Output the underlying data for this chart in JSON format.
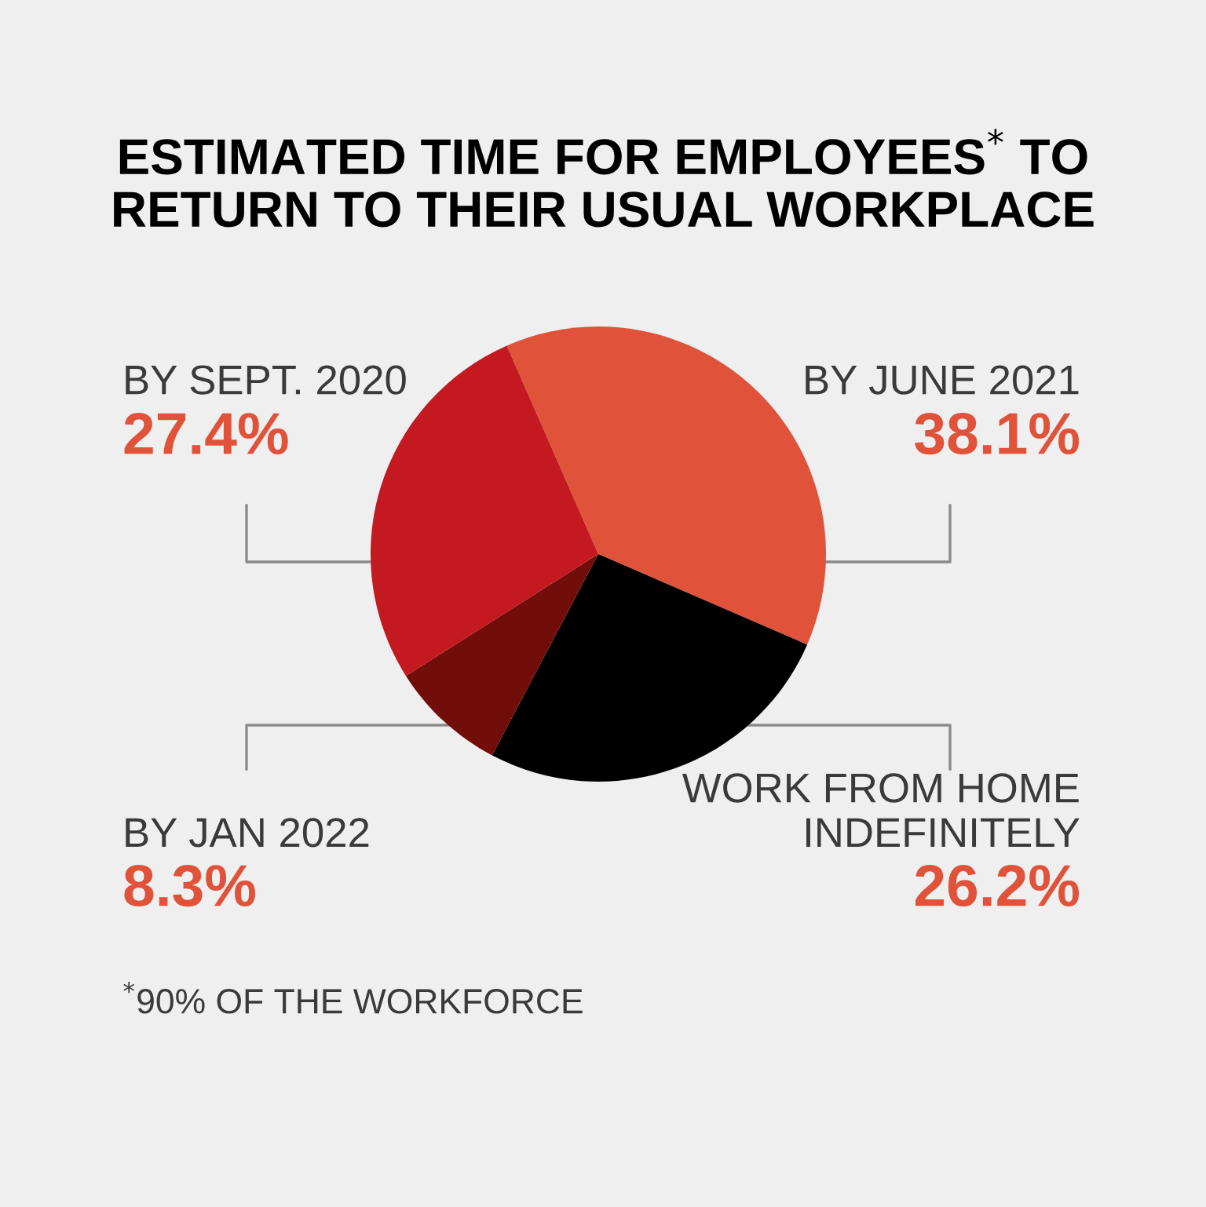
{
  "chart_data": {
    "type": "pie",
    "title": "ESTIMATED TIME FOR EMPLOYEES$^{*}$ TO\nRETURN TO THEIR USUAL WORKPLACE",
    "categories": [
      "BY JUNE 2021",
      "WORK FROM HOME\nINDEFINITELY",
      "BY JAN 2022",
      "BY SEPT. 2020"
    ],
    "values": [
      38.1,
      26.2,
      8.3,
      27.4
    ],
    "colors": [
      "#e0533a",
      "#000000",
      "#720e0a",
      "#c41920"
    ],
    "value_labels": [
      "38.1%",
      "26.2%",
      "8.3%",
      "27.4%"
    ],
    "legend": false,
    "annotations": [
      "$^{*}$90% OF THE WORKFORCE"
    ]
  }
}
